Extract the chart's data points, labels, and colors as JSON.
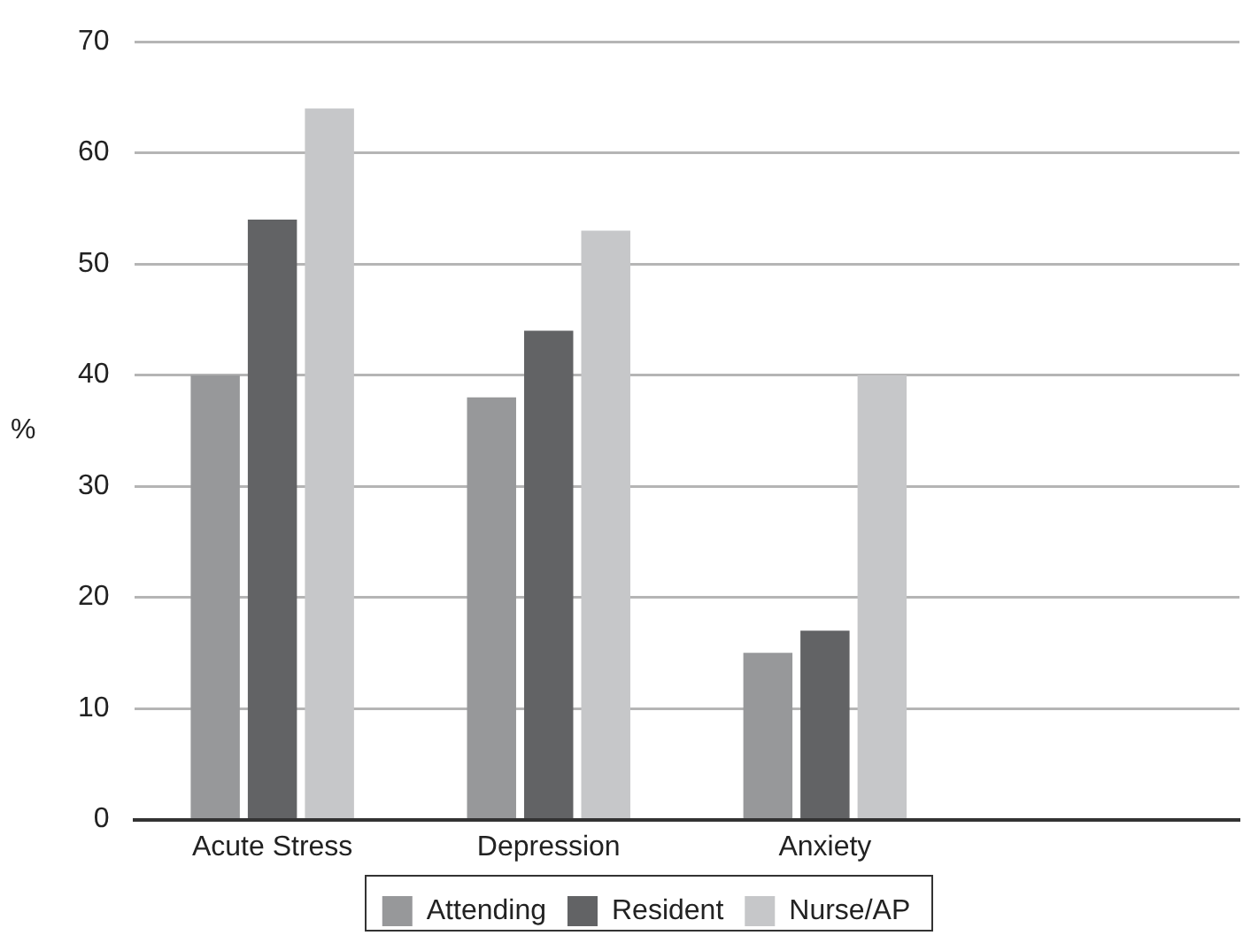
{
  "chart_data": {
    "type": "bar",
    "ylabel": "%",
    "categories": [
      "Acute Stress",
      "Depression",
      "Anxiety",
      null
    ],
    "series": [
      {
        "name": "Attending",
        "color": "#97989a",
        "values": [
          40,
          38,
          15,
          null
        ]
      },
      {
        "name": "Resident",
        "color": "#626365",
        "values": [
          54,
          44,
          17,
          null
        ]
      },
      {
        "name": "Nurse/AP",
        "color": "#c6c7c9",
        "values": [
          64,
          53,
          40,
          null
        ]
      }
    ],
    "ylim": [
      0,
      70
    ],
    "yticks": [
      0,
      10,
      20,
      30,
      40,
      50,
      60,
      70
    ],
    "grid": "y",
    "legend": "bottom"
  }
}
